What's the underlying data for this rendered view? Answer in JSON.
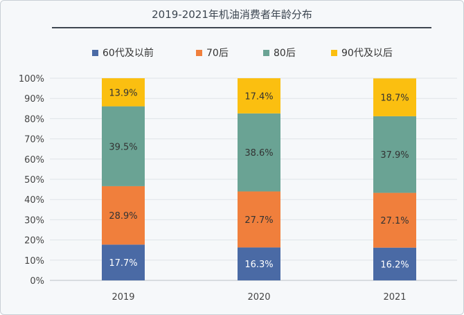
{
  "chart_data": {
    "type": "bar",
    "stacked": true,
    "title": "2019-2021年机油消费者年龄分布",
    "categories": [
      "2019",
      "2020",
      "2021"
    ],
    "yticks": [
      "0%",
      "10%",
      "20%",
      "30%",
      "40%",
      "50%",
      "60%",
      "70%",
      "80%",
      "90%",
      "100%"
    ],
    "ylim": [
      0,
      100
    ],
    "grid": true,
    "legend_position": "top",
    "series": [
      {
        "name": "60代及以前",
        "color": "#4a6aa5",
        "values": [
          17.7,
          16.3,
          16.2
        ],
        "labels": [
          "17.7%",
          "16.3%",
          "16.2%"
        ]
      },
      {
        "name": "70后",
        "color": "#f07f3c",
        "values": [
          28.9,
          27.7,
          27.1
        ],
        "labels": [
          "28.9%",
          "27.7%",
          "27.1%"
        ]
      },
      {
        "name": "80后",
        "color": "#6aa394",
        "values": [
          39.5,
          38.6,
          37.9
        ],
        "labels": [
          "39.5%",
          "38.6%",
          "37.9%"
        ]
      },
      {
        "name": "90代及以后",
        "color": "#fbbf10",
        "values": [
          13.9,
          17.4,
          18.7
        ],
        "labels": [
          "13.9%",
          "17.4%",
          "18.7%"
        ]
      }
    ]
  }
}
